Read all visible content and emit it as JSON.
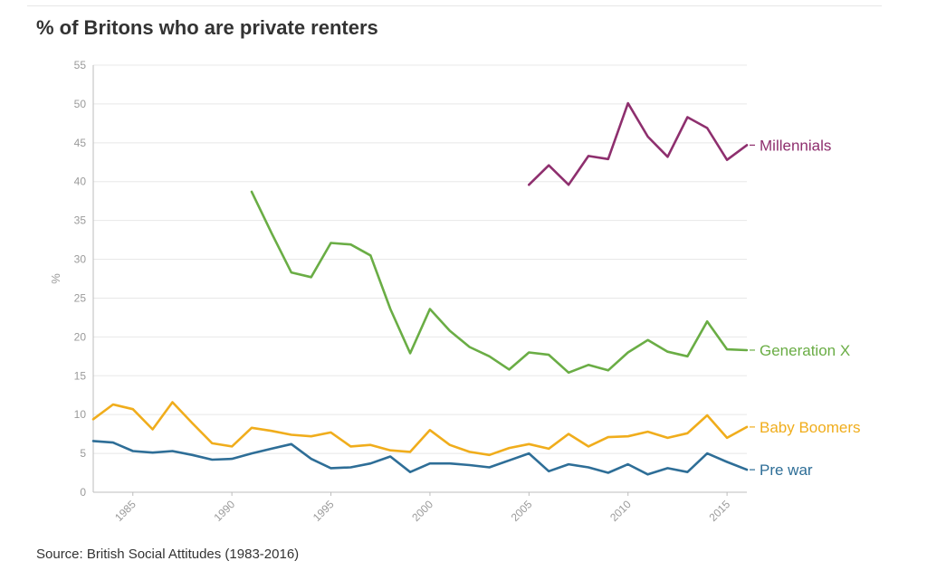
{
  "chart_data": {
    "type": "line",
    "title": "% of Britons who are private renters",
    "xlabel": "",
    "ylabel": "%",
    "xlim": [
      1983,
      2016
    ],
    "ylim": [
      0,
      55
    ],
    "xticks": [
      1985,
      1990,
      1995,
      2000,
      2005,
      2010,
      2015
    ],
    "yticks": [
      0,
      5,
      10,
      15,
      20,
      25,
      30,
      35,
      40,
      45,
      50,
      55
    ],
    "grid": true,
    "legend": "direct labels at right end of each line",
    "series": [
      {
        "name": "Millennials",
        "color": "#8e2f6e",
        "x": [
          2005,
          2006,
          2007,
          2008,
          2009,
          2010,
          2011,
          2012,
          2013,
          2014,
          2015,
          2016
        ],
        "values": [
          39.6,
          42.1,
          39.6,
          43.3,
          42.9,
          50.1,
          45.8,
          43.2,
          48.3,
          46.9,
          42.8,
          44.7
        ]
      },
      {
        "name": "Generation X",
        "color": "#6aad45",
        "x": [
          1991,
          1992,
          1993,
          1994,
          1995,
          1996,
          1997,
          1998,
          1999,
          2000,
          2001,
          2002,
          2003,
          2004,
          2005,
          2006,
          2007,
          2008,
          2009,
          2010,
          2011,
          2012,
          2013,
          2014,
          2015,
          2016
        ],
        "values": [
          38.7,
          33.4,
          28.3,
          27.7,
          32.1,
          31.9,
          30.5,
          23.6,
          17.9,
          23.6,
          20.8,
          18.7,
          17.5,
          15.8,
          18.0,
          17.7,
          15.4,
          16.4,
          15.7,
          18.0,
          19.6,
          18.1,
          17.5,
          22.0,
          18.4,
          18.3
        ]
      },
      {
        "name": "Baby Boomers",
        "color": "#f0ad1c",
        "x": [
          1983,
          1984,
          1985,
          1986,
          1987,
          1988,
          1989,
          1990,
          1991,
          1992,
          1993,
          1994,
          1995,
          1996,
          1997,
          1998,
          1999,
          2000,
          2001,
          2002,
          2003,
          2004,
          2005,
          2006,
          2007,
          2008,
          2009,
          2010,
          2011,
          2012,
          2013,
          2014,
          2015,
          2016
        ],
        "values": [
          9.4,
          11.3,
          10.7,
          8.1,
          11.6,
          8.9,
          6.3,
          5.9,
          8.3,
          7.9,
          7.4,
          7.2,
          7.7,
          5.9,
          6.1,
          5.4,
          5.2,
          8.0,
          6.1,
          5.2,
          4.8,
          5.7,
          6.2,
          5.6,
          7.5,
          5.9,
          7.1,
          7.2,
          7.8,
          7.0,
          7.6,
          9.9,
          7.0,
          8.4
        ]
      },
      {
        "name": "Pre war",
        "color": "#2e6e97",
        "x": [
          1983,
          1984,
          1985,
          1986,
          1987,
          1988,
          1989,
          1990,
          1991,
          1992,
          1993,
          1994,
          1995,
          1996,
          1997,
          1998,
          1999,
          2000,
          2001,
          2002,
          2003,
          2004,
          2005,
          2006,
          2007,
          2008,
          2009,
          2010,
          2011,
          2012,
          2013,
          2014,
          2015,
          2016
        ],
        "values": [
          6.6,
          6.4,
          5.3,
          5.1,
          5.3,
          4.8,
          4.2,
          4.3,
          5.0,
          5.6,
          6.2,
          4.3,
          3.1,
          3.2,
          3.7,
          4.6,
          2.6,
          3.7,
          3.7,
          3.5,
          3.2,
          4.1,
          5.0,
          2.7,
          3.6,
          3.2,
          2.5,
          3.6,
          2.3,
          3.1,
          2.6,
          5.0,
          3.9,
          2.9
        ]
      }
    ]
  },
  "footer": {
    "source": "Source: British Social Attitudes (1983-2016)"
  }
}
